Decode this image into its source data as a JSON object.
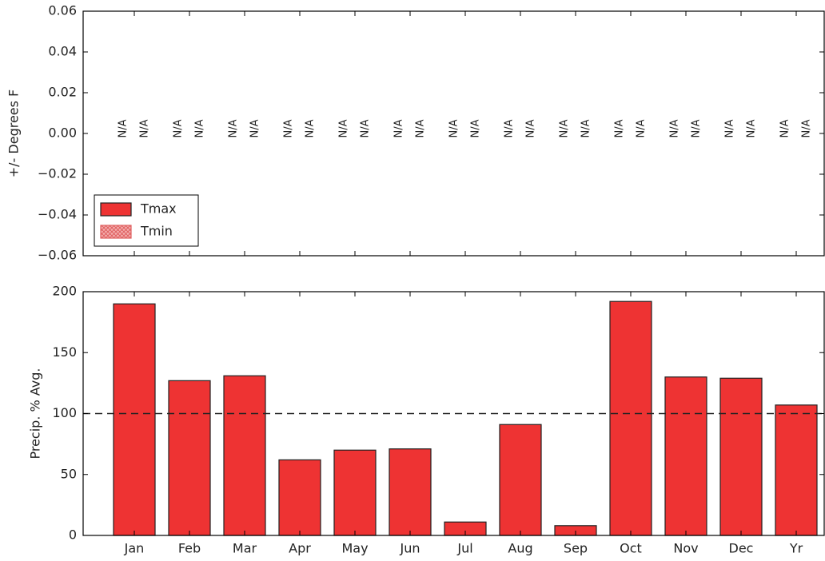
{
  "chart_data": [
    {
      "type": "bar",
      "ylabel": "+/- Degrees F",
      "categories": [
        null,
        null,
        null,
        null,
        null,
        null,
        null,
        null,
        null,
        null,
        null,
        null,
        null
      ],
      "series": [
        {
          "name": "Tmax",
          "color": "#ee3333",
          "hatch": false,
          "values": [
            null,
            null,
            null,
            null,
            null,
            null,
            null,
            null,
            null,
            null,
            null,
            null,
            null
          ],
          "value_labels": [
            "N/A",
            "N/A",
            "N/A",
            "N/A",
            "N/A",
            "N/A",
            "N/A",
            "N/A",
            "N/A",
            "N/A",
            "N/A",
            "N/A",
            "N/A"
          ]
        },
        {
          "name": "Tmin",
          "color": "#e06060",
          "hatch": true,
          "values": [
            null,
            null,
            null,
            null,
            null,
            null,
            null,
            null,
            null,
            null,
            null,
            null,
            null
          ],
          "value_labels": [
            "N/A",
            "N/A",
            "N/A",
            "N/A",
            "N/A",
            "N/A",
            "N/A",
            "N/A",
            "N/A",
            "N/A",
            "N/A",
            "N/A",
            "N/A"
          ]
        }
      ],
      "ylim": [
        -0.06,
        0.06
      ],
      "yticks": [
        0.06,
        0.04,
        0.02,
        {
          "value": 0,
          "label": "0.00"
        },
        {
          "value": -0.02,
          "label": "−0.02"
        },
        {
          "value": -0.04,
          "label": "−0.04"
        },
        {
          "value": -0.06,
          "label": "−0.06"
        }
      ],
      "legend": "lower left"
    },
    {
      "type": "bar",
      "ylabel": "Precip. % Avg.",
      "categories": [
        "Jan",
        "Feb",
        "Mar",
        "Apr",
        "May",
        "Jun",
        "Jul",
        "Aug",
        "Sep",
        "Oct",
        "Nov",
        "Dec",
        "Yr"
      ],
      "values": [
        190,
        127,
        131,
        62,
        70,
        71,
        11,
        91,
        8,
        192,
        130,
        129,
        107
      ],
      "color": "#ee3333",
      "ylim": [
        0,
        200
      ],
      "yticks": [
        0,
        50,
        100,
        150,
        200
      ],
      "hline": 100
    }
  ]
}
